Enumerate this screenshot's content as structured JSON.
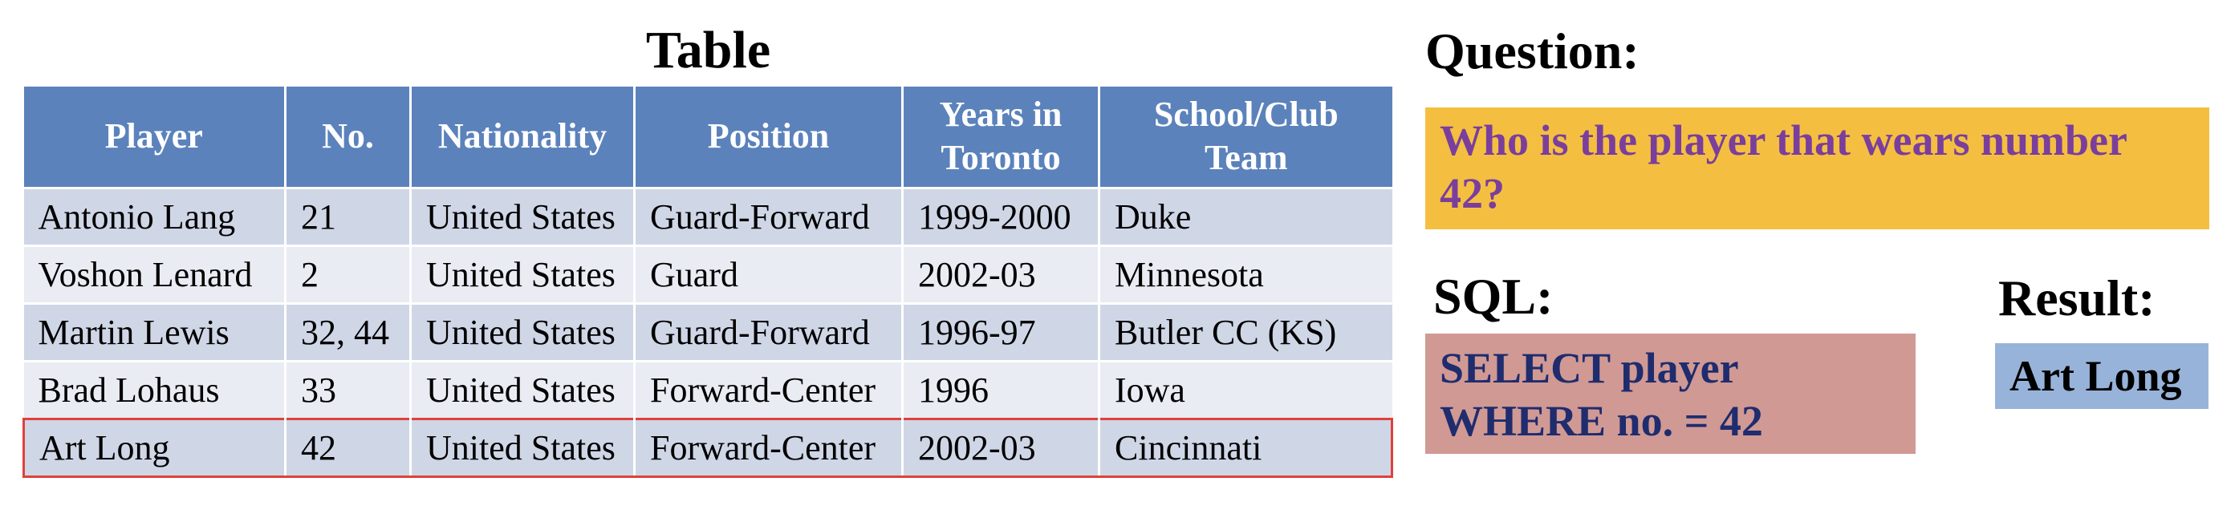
{
  "table": {
    "title": "Table",
    "headers": [
      [
        "Player"
      ],
      [
        "No."
      ],
      [
        "Nationality"
      ],
      [
        "Position"
      ],
      [
        "Years in",
        "Toronto"
      ],
      [
        "School/Club",
        "Team"
      ]
    ],
    "rows": [
      [
        "Antonio Lang",
        "21",
        "United States",
        "Guard-Forward",
        "1999-2000",
        "Duke"
      ],
      [
        "Voshon Lenard",
        "2",
        "United States",
        "Guard",
        "2002-03",
        "Minnesota"
      ],
      [
        "Martin Lewis",
        "32, 44",
        "United States",
        "Guard-Forward",
        "1996-97",
        "Butler CC (KS)"
      ],
      [
        "Brad Lohaus",
        "33",
        "United States",
        "Forward-Center",
        "1996",
        "Iowa"
      ],
      [
        "Art Long",
        "42",
        "United States",
        "Forward-Center",
        "2002-03",
        "Cincinnati"
      ]
    ],
    "highlight_row": 4
  },
  "question": {
    "heading": "Question:",
    "text": "Who is the player that wears number 42?"
  },
  "sql": {
    "heading": "SQL:",
    "lines": [
      "SELECT player",
      "WHERE no. = 42"
    ]
  },
  "result": {
    "heading": "Result:",
    "value": "Art Long"
  },
  "colors": {
    "header_bg": "#5b82bb",
    "row_odd": "#cfd6e6",
    "row_even": "#e9ecf3",
    "highlight_border": "#e0413a",
    "question_bg": "#f4bf40",
    "question_text": "#7a3e9d",
    "sql_bg": "#d09994",
    "sql_text": "#1f2c6d",
    "result_bg": "#98b3d9"
  }
}
